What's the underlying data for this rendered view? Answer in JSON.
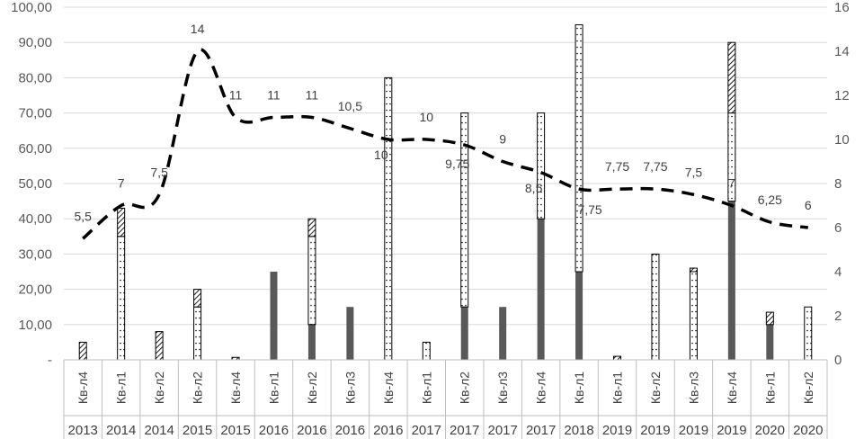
{
  "chart_data": {
    "type": "bar",
    "title": "",
    "xlabel": "",
    "ylabel": "",
    "ylim": [
      0,
      100
    ],
    "y2lim": [
      0,
      16
    ],
    "grid": true,
    "categories": [
      "Кв-л4",
      "Кв-л1",
      "Кв-л2",
      "Кв-л2",
      "Кв-л4",
      "Кв-л1",
      "Кв-л2",
      "Кв-л3",
      "Кв-л4",
      "Кв-л1",
      "Кв-л2",
      "Кв-л3",
      "Кв-л4",
      "Кв-л1",
      "Кв-л1",
      "Кв-л2",
      "Кв-л3",
      "Кв-л4",
      "Кв-л1",
      "Кв-л2"
    ],
    "years": [
      "2013",
      "2014",
      "2014",
      "2015",
      "2015",
      "2016",
      "2016",
      "2016",
      "2016",
      "2017",
      "2017",
      "2017",
      "2017",
      "2018",
      "2019",
      "2019",
      "2019",
      "2019",
      "2020",
      "2020"
    ],
    "y_ticks": [
      "-",
      "10,00",
      "20,00",
      "30,00",
      "40,00",
      "50,00",
      "60,00",
      "70,00",
      "80,00",
      "90,00",
      "100,00"
    ],
    "y2_ticks": [
      "0",
      "2",
      "4",
      "6",
      "8",
      "10",
      "12",
      "14",
      "16"
    ],
    "series": [
      {
        "name": "solid",
        "style": "solid-gray",
        "base": [
          0,
          0,
          0,
          0,
          0,
          0,
          0,
          0,
          0,
          0,
          0,
          0,
          0,
          0,
          0,
          0,
          0,
          0,
          0,
          0
        ],
        "values": [
          0,
          0,
          0,
          0,
          0,
          25,
          10,
          15,
          0,
          0,
          15,
          15,
          40,
          25,
          0,
          0,
          0,
          45,
          10,
          0
        ]
      },
      {
        "name": "dotted",
        "style": "dotted",
        "base": [
          0,
          0,
          0,
          0,
          0,
          0,
          10,
          0,
          0,
          0,
          15,
          0,
          40,
          25,
          0,
          0,
          0,
          45,
          0,
          0
        ],
        "values": [
          0,
          35,
          0,
          15,
          0,
          0,
          35,
          0,
          80,
          5,
          70,
          0,
          70,
          95,
          0,
          30,
          25,
          70,
          0,
          15
        ]
      },
      {
        "name": "hatched",
        "style": "hatched",
        "base": [
          0,
          35,
          0,
          15,
          0,
          0,
          35,
          0,
          0,
          0,
          0,
          0,
          0,
          0,
          0,
          0,
          25,
          70,
          10,
          0
        ],
        "values": [
          5,
          43,
          8,
          20,
          0.7,
          0,
          40,
          0,
          0,
          0,
          0,
          0,
          0,
          0,
          1,
          0,
          26,
          90,
          13.5,
          0
        ]
      },
      {
        "name": "rate",
        "style": "dashed-line",
        "axis": "secondary",
        "values": [
          5.5,
          7,
          7.5,
          14,
          11,
          11,
          11,
          10.5,
          10,
          10,
          9.75,
          9,
          8.5,
          7.75,
          7.75,
          7.75,
          7.5,
          7,
          6.25,
          6
        ],
        "labels": [
          "5,5",
          "7",
          "7,5",
          "14",
          "11",
          "11",
          "11",
          "10,5",
          "10",
          "10",
          "9,75",
          "9",
          "8,5",
          "7,75",
          "7,75",
          "7,75",
          "7,5",
          "7",
          "6,25",
          "6"
        ]
      }
    ]
  }
}
